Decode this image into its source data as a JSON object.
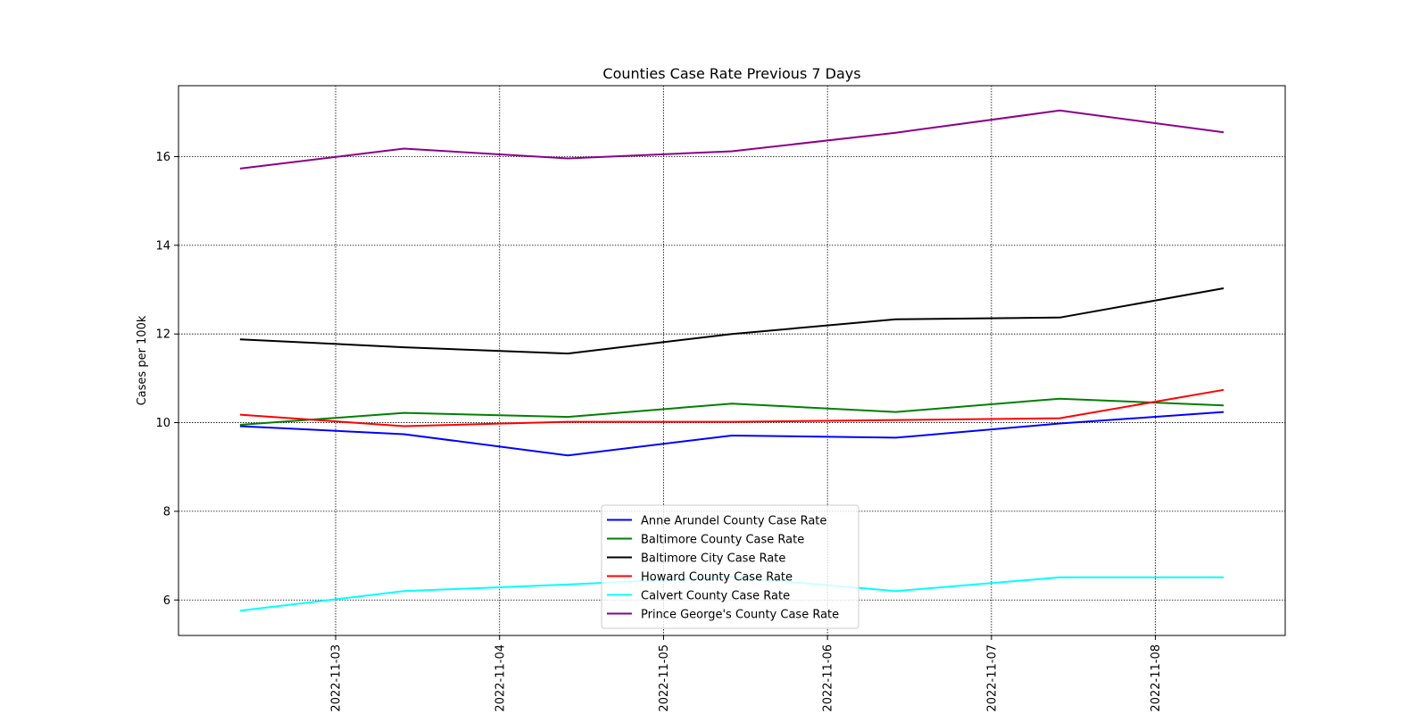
{
  "chart_data": {
    "type": "line",
    "title": "Counties Case Rate Previous 7 Days",
    "xlabel": "",
    "ylabel": "Cases per 100k",
    "x": [
      "2022-11-02 10:00",
      "2022-11-03 10:00",
      "2022-11-04 10:00",
      "2022-11-05 10:00",
      "2022-11-06 10:00",
      "2022-11-07 10:00",
      "2022-11-08 10:00"
    ],
    "xlim": [
      "2022-11-02 01:00",
      "2022-11-08 19:00"
    ],
    "ylim": [
      5.2,
      17.6
    ],
    "xticks": [
      "2022-11-03",
      "2022-11-04",
      "2022-11-05",
      "2022-11-06",
      "2022-11-07",
      "2022-11-08"
    ],
    "yticks": [
      6,
      8,
      10,
      12,
      14,
      16
    ],
    "grid": true,
    "grid_style": "dotted",
    "legend_position": "lower center",
    "series": [
      {
        "name": "Anne Arundel County Case Rate",
        "color": "#0000ff",
        "values": [
          9.92,
          9.74,
          9.26,
          9.71,
          9.66,
          9.98,
          10.24
        ]
      },
      {
        "name": "Baltimore County Case Rate",
        "color": "#008000",
        "values": [
          9.95,
          10.22,
          10.13,
          10.43,
          10.24,
          10.54,
          10.39
        ]
      },
      {
        "name": "Baltimore City Case Rate",
        "color": "#000000",
        "values": [
          11.88,
          11.7,
          11.56,
          12.0,
          12.33,
          12.37,
          13.03
        ]
      },
      {
        "name": "Howard County Case Rate",
        "color": "#ff0000",
        "values": [
          10.18,
          9.92,
          10.02,
          10.02,
          10.06,
          10.1,
          10.74
        ]
      },
      {
        "name": "Calvert County Case Rate",
        "color": "#00ffff",
        "values": [
          5.76,
          6.2,
          6.35,
          6.52,
          6.2,
          6.51,
          6.51
        ]
      },
      {
        "name": "Prince George's County Case Rate",
        "color": "#8b008b",
        "values": [
          15.73,
          16.18,
          15.96,
          16.12,
          16.54,
          17.04,
          16.55
        ]
      }
    ]
  }
}
